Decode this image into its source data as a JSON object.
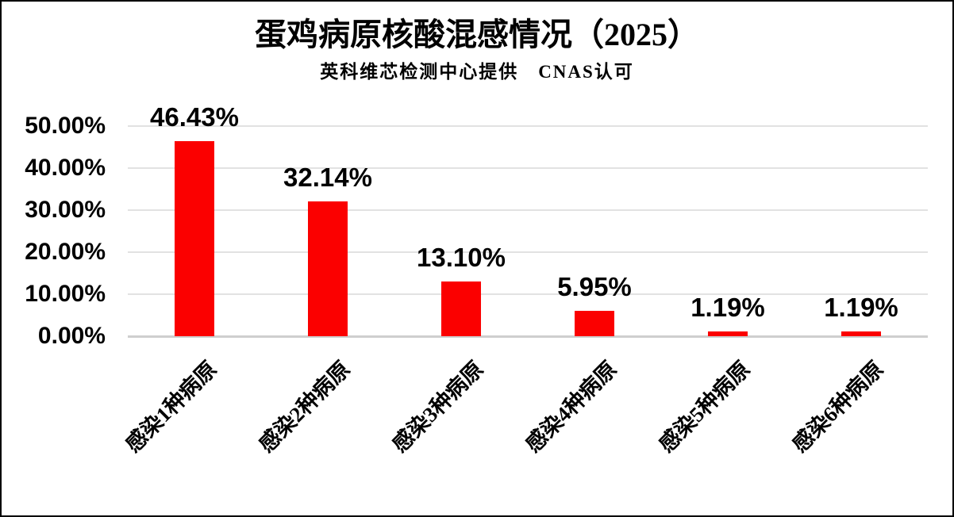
{
  "chart_data": {
    "type": "bar",
    "title": "蛋鸡病原核酸混感情况（2025）",
    "subtitle": "英科维芯检测中心提供　CNAS认可",
    "categories": [
      "感染1种病原",
      "感染2种病原",
      "感染3种病原",
      "感染4种病原",
      "感染5种病原",
      "感染6种病原"
    ],
    "values": [
      46.43,
      32.14,
      13.1,
      5.95,
      1.19,
      1.19
    ],
    "data_labels": [
      "46.43%",
      "32.14%",
      "13.10%",
      "5.95%",
      "1.19%",
      "1.19%"
    ],
    "y_tick_labels": [
      "50.00%",
      "40.00%",
      "30.00%",
      "20.00%",
      "10.00%",
      "0.00%"
    ],
    "y_tick_values": [
      50,
      40,
      30,
      20,
      10,
      0
    ],
    "ylim": [
      0,
      50
    ],
    "xlabel": "",
    "ylabel": "",
    "legend": "none",
    "grid": true,
    "bar_color": "#FB0000",
    "gridline_color": "#E2E2E2",
    "axis_line_color": "#CFCFCF",
    "text_color": "#000000",
    "x_label_rotation_deg": 45
  }
}
